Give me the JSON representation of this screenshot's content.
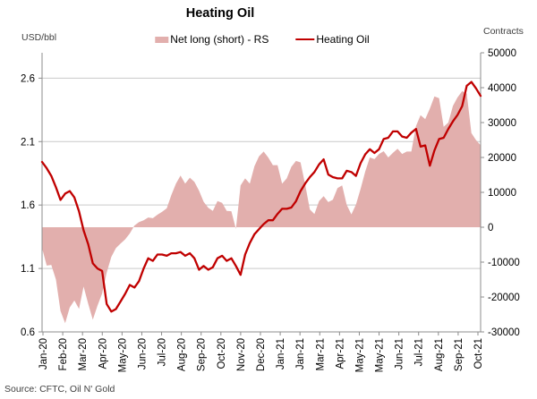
{
  "title": "Heating Oil",
  "axis_units": {
    "left": "USD/bbl",
    "right": "Contracts"
  },
  "legend": {
    "area_label": "Net long (short) - RS",
    "line_label": "Heating Oil"
  },
  "source": "Source: CFTC, Oil N' Gold",
  "colors": {
    "line": "#C00000",
    "area": "#E2AFAD",
    "grid": "#C9C9C9",
    "axis": "#8C8C8C",
    "text": "#000000"
  },
  "chart_data": {
    "type": "line",
    "title": "Heating Oil",
    "description": "Combo chart: pink area = CFTC net long (short) positions on right scale, red line = heating oil price on left scale, weekly points Jan-2020 to Oct-2021",
    "x_axis": {
      "tick_labels": [
        "Jan-20",
        "Feb-20",
        "Mar-20",
        "Apr-20",
        "May-20",
        "Jun-20",
        "Jul-20",
        "Aug-20",
        "Sep-20",
        "Oct-20",
        "Nov-20",
        "Dec-20",
        "Jan-21",
        "Jan-21",
        "Mar-21",
        "Apr-21",
        "May-21",
        "May-21",
        "Jun-21",
        "Jul-21",
        "Aug-21",
        "Sep-21",
        "Oct-21"
      ]
    },
    "left_axis": {
      "label": "USD/bbl",
      "min": 0.6,
      "max": 2.8,
      "tick_values": [
        0.6,
        1.1,
        1.6,
        2.1,
        2.6
      ],
      "tick_labels": [
        "0.6",
        "1.1",
        "1.6",
        "2.1",
        "2.6"
      ]
    },
    "right_axis": {
      "label": "Contracts",
      "min": -30000,
      "max": 50000,
      "tick_values": [
        -30000,
        -20000,
        -10000,
        0,
        10000,
        20000,
        30000,
        40000,
        50000
      ],
      "tick_labels": [
        "-30000",
        "-20000",
        "-10000",
        "0",
        "10000",
        "20000",
        "30000",
        "40000",
        "50000"
      ]
    },
    "grid": true,
    "legend_position": "top",
    "series": [
      {
        "name": "Net long (short) - RS",
        "type": "area",
        "axis": "right",
        "values": [
          -6000,
          -11000,
          -10800,
          -15000,
          -24000,
          -27500,
          -23000,
          -21000,
          -23400,
          -17000,
          -22000,
          -26500,
          -22500,
          -19000,
          -13000,
          -8500,
          -6000,
          -4700,
          -3500,
          -1800,
          500,
          1500,
          2000,
          2800,
          2600,
          3600,
          4400,
          5400,
          9200,
          12500,
          14800,
          12500,
          14200,
          13000,
          10500,
          7300,
          5600,
          4700,
          7500,
          7000,
          4700,
          4600,
          -500,
          12000,
          14000,
          12500,
          17500,
          20300,
          21700,
          20000,
          17800,
          17800,
          12500,
          14000,
          17300,
          19000,
          18600,
          12200,
          5100,
          3800,
          7500,
          8900,
          7200,
          7900,
          11200,
          12000,
          6400,
          3700,
          6500,
          11000,
          16000,
          20000,
          19500,
          21000,
          21800,
          20000,
          21300,
          22500,
          21000,
          21700,
          21700,
          29000,
          32100,
          31000,
          34000,
          37500,
          37000,
          28800,
          30000,
          34800,
          37200,
          39000,
          38300,
          27000,
          25000,
          23500
        ]
      },
      {
        "name": "Heating Oil",
        "type": "line",
        "axis": "left",
        "values": [
          1.94,
          1.89,
          1.83,
          1.74,
          1.64,
          1.69,
          1.71,
          1.66,
          1.55,
          1.4,
          1.29,
          1.14,
          1.1,
          1.08,
          0.82,
          0.76,
          0.78,
          0.84,
          0.9,
          0.97,
          0.95,
          1.0,
          1.1,
          1.18,
          1.16,
          1.21,
          1.21,
          1.2,
          1.22,
          1.22,
          1.23,
          1.2,
          1.22,
          1.18,
          1.09,
          1.12,
          1.09,
          1.11,
          1.18,
          1.2,
          1.16,
          1.18,
          1.12,
          1.05,
          1.21,
          1.3,
          1.37,
          1.41,
          1.45,
          1.48,
          1.48,
          1.53,
          1.57,
          1.57,
          1.58,
          1.63,
          1.71,
          1.77,
          1.82,
          1.86,
          1.92,
          1.96,
          1.84,
          1.82,
          1.81,
          1.81,
          1.87,
          1.86,
          1.83,
          1.93,
          2.0,
          2.04,
          2.01,
          2.04,
          2.12,
          2.13,
          2.18,
          2.18,
          2.14,
          2.13,
          2.17,
          2.2,
          2.06,
          2.07,
          1.91,
          2.03,
          2.12,
          2.13,
          2.2,
          2.26,
          2.31,
          2.38,
          2.54,
          2.57,
          2.52,
          2.46
        ]
      }
    ]
  }
}
